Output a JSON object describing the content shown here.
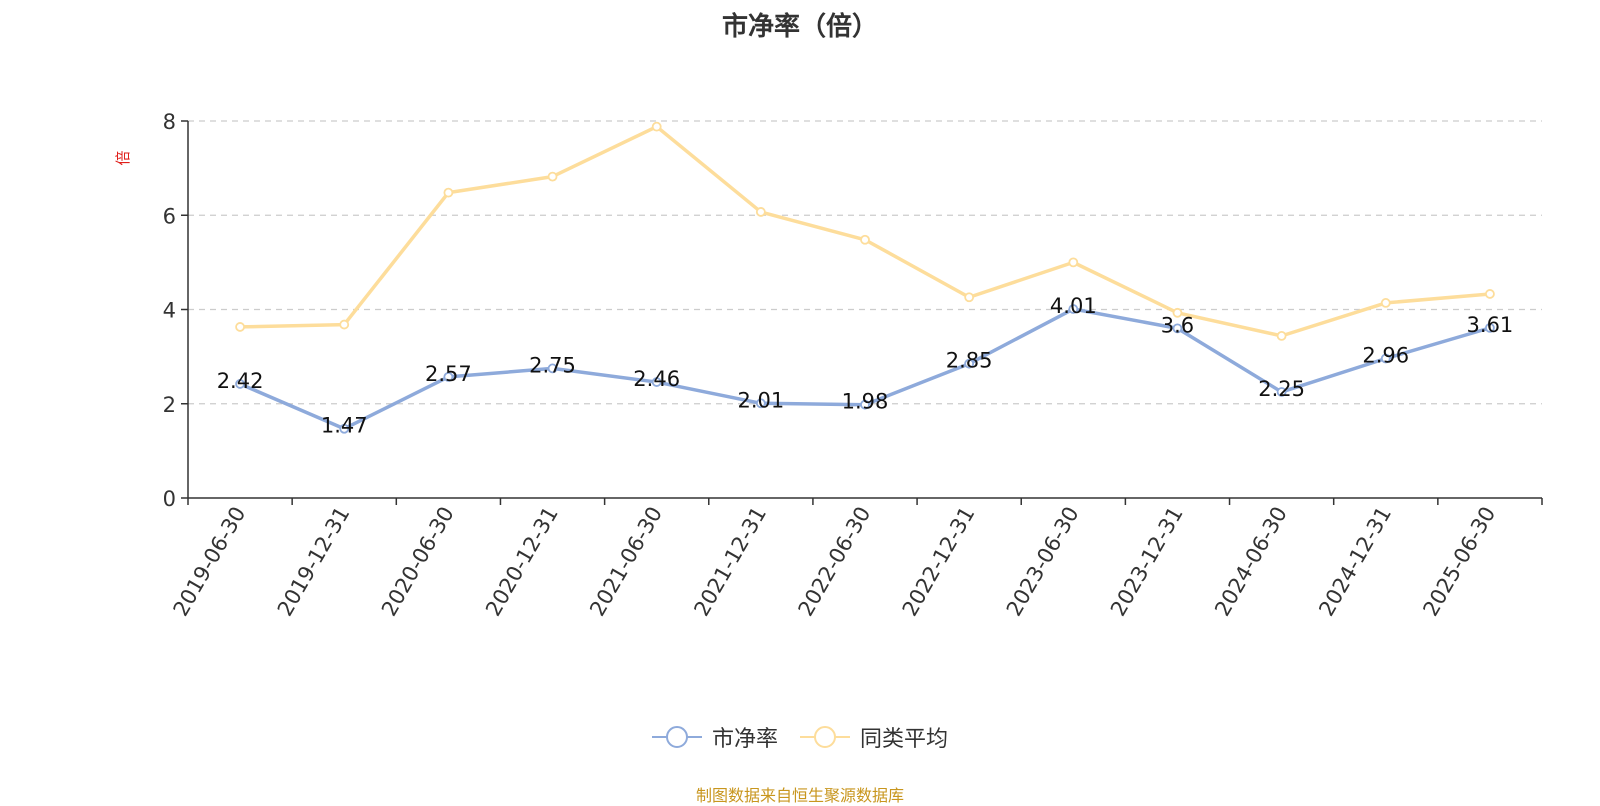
{
  "chart_data": {
    "type": "line",
    "title": "市净率（倍）",
    "ylabel": "倍",
    "ylim": [
      0,
      8
    ],
    "yticks": [
      0,
      2,
      4,
      6,
      8
    ],
    "grid": true,
    "legend_position": "bottom",
    "categories": [
      "2019-06-30",
      "2019-12-31",
      "2020-06-30",
      "2020-12-31",
      "2021-06-30",
      "2021-12-31",
      "2022-06-30",
      "2022-12-31",
      "2023-06-30",
      "2023-12-31",
      "2024-06-30",
      "2024-12-31",
      "2025-06-30"
    ],
    "series": [
      {
        "name": "市净率",
        "color": "#8eaadb",
        "labels_shown": true,
        "values": [
          2.42,
          1.47,
          2.57,
          2.75,
          2.46,
          2.01,
          1.98,
          2.85,
          4.01,
          3.6,
          2.25,
          2.96,
          3.61
        ]
      },
      {
        "name": "同类平均",
        "color": "#fddd9b",
        "labels_shown": false,
        "values": [
          3.63,
          3.68,
          6.48,
          6.82,
          7.88,
          6.07,
          5.48,
          4.26,
          5.0,
          3.93,
          3.44,
          4.14,
          4.33
        ]
      }
    ]
  },
  "source_note": "制图数据来自恒生聚源数据库",
  "colors": {
    "axis": "#333333",
    "grid": "#cccccc",
    "ylabel": "#e0201b",
    "source": "#c8961e"
  }
}
